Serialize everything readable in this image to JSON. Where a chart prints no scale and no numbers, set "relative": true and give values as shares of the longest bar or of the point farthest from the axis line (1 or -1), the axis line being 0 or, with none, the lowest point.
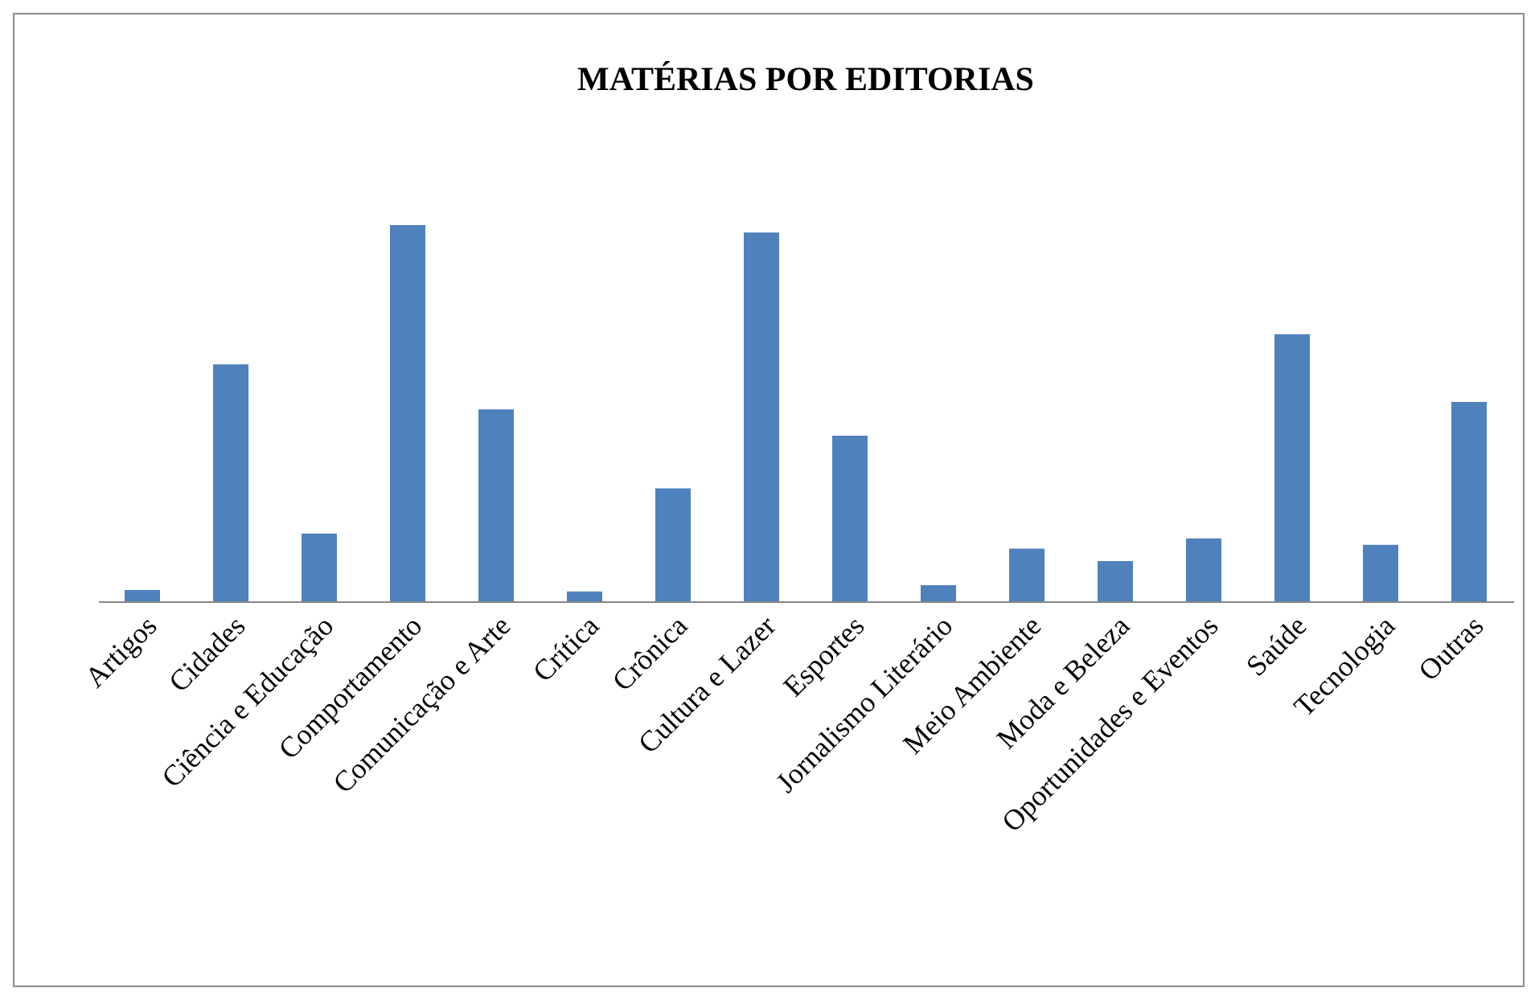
{
  "chart_data": {
    "type": "bar",
    "title": "MATÉRIAS POR EDITORIAS",
    "relative": true,
    "color": "#4f81bd",
    "grid": false,
    "categories": [
      "Artigos",
      "Cidades",
      "Ciência e Educação",
      "Comportamento",
      "Comunicação e Arte",
      "Crítica",
      "Crônica",
      "Cultura e Lazer",
      "Esportes",
      "Jornalismo Literário",
      "Meio Ambiente",
      "Moda e Beleza",
      "Oportunidades e Eventos",
      "Saúde",
      "Tecnologia",
      "Outras"
    ],
    "values": [
      0.03,
      0.63,
      0.18,
      1,
      0.51,
      0.026,
      0.3,
      0.98,
      0.44,
      0.043,
      0.14,
      0.107,
      0.167,
      0.71,
      0.15,
      0.53
    ]
  }
}
